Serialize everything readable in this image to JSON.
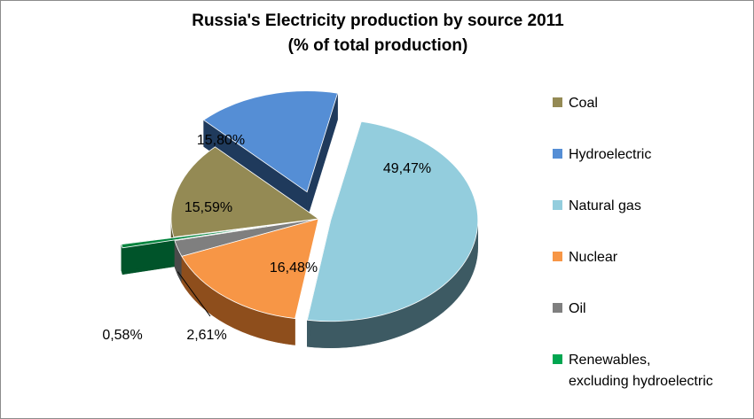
{
  "chart_data": {
    "type": "pie",
    "title": [
      "Russia's Electricity production by source 2011",
      "(% of total production)"
    ],
    "slices": [
      {
        "name": "Natural gas",
        "value": 49.47,
        "label": "49,47%",
        "color": "#93CDDD",
        "side": "#3D5A63",
        "exploded": true
      },
      {
        "name": "Nuclear",
        "value": 16.48,
        "label": "16,48%",
        "color": "#F79646",
        "side": "#8E4E1C",
        "exploded": false
      },
      {
        "name": "Oil",
        "value": 2.61,
        "label": "2,61%",
        "color": "#7F7F7F",
        "side": "#4A4A4A",
        "exploded": false
      },
      {
        "name": "Renewables, excluding hydroelectric",
        "value": 0.58,
        "label": "0,58%",
        "color": "#00843D",
        "side": "#00542A",
        "exploded": true
      },
      {
        "name": "Coal",
        "value": 15.59,
        "label": "15,59%",
        "color": "#948A54",
        "side": "#5D5632",
        "exploded": false
      },
      {
        "name": "Hydroelectric",
        "value": 15.8,
        "label": "15,80%",
        "color": "#558ED5",
        "side": "#1F3A5C",
        "exploded": true
      }
    ],
    "legend": [
      {
        "name": "Coal",
        "color": "#948A54"
      },
      {
        "name": "Hydroelectric",
        "color": "#558ED5"
      },
      {
        "name": "Natural gas",
        "color": "#93CDDD"
      },
      {
        "name": "Nuclear",
        "color": "#F79646"
      },
      {
        "name": "Oil",
        "color": "#7F7F7F"
      },
      {
        "name": "Renewables, excluding hydroelectric",
        "color": "#00A650"
      }
    ],
    "legend_position": "right"
  }
}
